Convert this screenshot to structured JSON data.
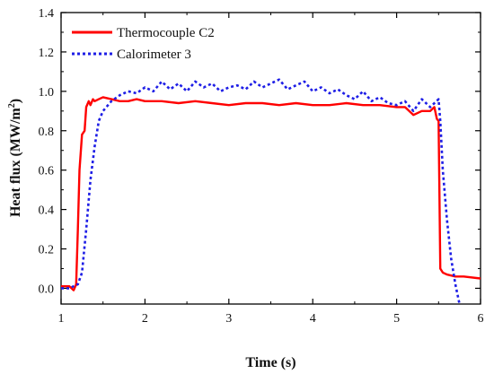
{
  "chart_data": {
    "type": "line",
    "xlabel": "Time (s)",
    "ylabel": "Heat flux (MW/m",
    "ylabel_superscript": "2",
    "ylabel_suffix": ")",
    "xlim": [
      1,
      6
    ],
    "ylim": [
      -0.08,
      1.4
    ],
    "x_ticks": [
      1,
      2,
      3,
      4,
      5,
      6
    ],
    "x_tick_labels": [
      "1",
      "2",
      "3",
      "4",
      "5",
      "6"
    ],
    "y_ticks": [
      0.0,
      0.2,
      0.4,
      0.6,
      0.8,
      1.0,
      1.2,
      1.4
    ],
    "y_tick_labels": [
      "0.0",
      "0.2",
      "0.4",
      "0.6",
      "0.8",
      "1.0",
      "1.2",
      "1.4"
    ],
    "grid": false,
    "legend_position": "top-left",
    "series": [
      {
        "name": "Thermocouple C2",
        "color": "#ff0000",
        "line_style": "solid",
        "x": [
          1.0,
          1.1,
          1.15,
          1.18,
          1.2,
          1.22,
          1.25,
          1.28,
          1.3,
          1.33,
          1.35,
          1.38,
          1.4,
          1.45,
          1.5,
          1.6,
          1.7,
          1.8,
          1.9,
          2.0,
          2.2,
          2.4,
          2.6,
          2.8,
          3.0,
          3.2,
          3.4,
          3.6,
          3.8,
          4.0,
          4.2,
          4.4,
          4.6,
          4.8,
          5.0,
          5.1,
          5.2,
          5.3,
          5.4,
          5.45,
          5.48,
          5.5,
          5.51,
          5.52,
          5.55,
          5.6,
          5.7,
          5.8,
          6.0
        ],
        "values": [
          0.01,
          0.01,
          -0.01,
          0.02,
          0.3,
          0.6,
          0.78,
          0.8,
          0.92,
          0.95,
          0.93,
          0.96,
          0.95,
          0.96,
          0.97,
          0.96,
          0.95,
          0.95,
          0.96,
          0.95,
          0.95,
          0.94,
          0.95,
          0.94,
          0.93,
          0.94,
          0.94,
          0.93,
          0.94,
          0.93,
          0.93,
          0.94,
          0.93,
          0.93,
          0.92,
          0.92,
          0.88,
          0.9,
          0.9,
          0.92,
          0.86,
          0.85,
          0.5,
          0.1,
          0.08,
          0.07,
          0.06,
          0.06,
          0.05
        ]
      },
      {
        "name": "Calorimeter 3",
        "color": "#1e1ee6",
        "line_style": "dotted",
        "x": [
          1.0,
          1.1,
          1.2,
          1.25,
          1.3,
          1.35,
          1.4,
          1.45,
          1.5,
          1.6,
          1.7,
          1.8,
          1.9,
          2.0,
          2.1,
          2.2,
          2.3,
          2.4,
          2.5,
          2.6,
          2.7,
          2.8,
          2.9,
          3.0,
          3.1,
          3.2,
          3.3,
          3.4,
          3.5,
          3.6,
          3.7,
          3.8,
          3.9,
          4.0,
          4.1,
          4.2,
          4.3,
          4.4,
          4.5,
          4.6,
          4.7,
          4.8,
          4.9,
          5.0,
          5.1,
          5.2,
          5.3,
          5.4,
          5.5,
          5.52,
          5.55,
          5.6,
          5.65,
          5.7,
          5.75
        ],
        "values": [
          0.0,
          0.0,
          0.02,
          0.08,
          0.3,
          0.55,
          0.72,
          0.85,
          0.9,
          0.95,
          0.98,
          1.0,
          0.99,
          1.02,
          1.0,
          1.05,
          1.01,
          1.04,
          1.0,
          1.05,
          1.02,
          1.04,
          1.0,
          1.02,
          1.03,
          1.01,
          1.05,
          1.02,
          1.04,
          1.06,
          1.01,
          1.03,
          1.05,
          1.0,
          1.02,
          0.99,
          1.01,
          0.98,
          0.96,
          1.0,
          0.95,
          0.97,
          0.94,
          0.93,
          0.95,
          0.9,
          0.96,
          0.92,
          0.96,
          0.85,
          0.6,
          0.35,
          0.15,
          0.02,
          -0.08
        ]
      }
    ]
  }
}
